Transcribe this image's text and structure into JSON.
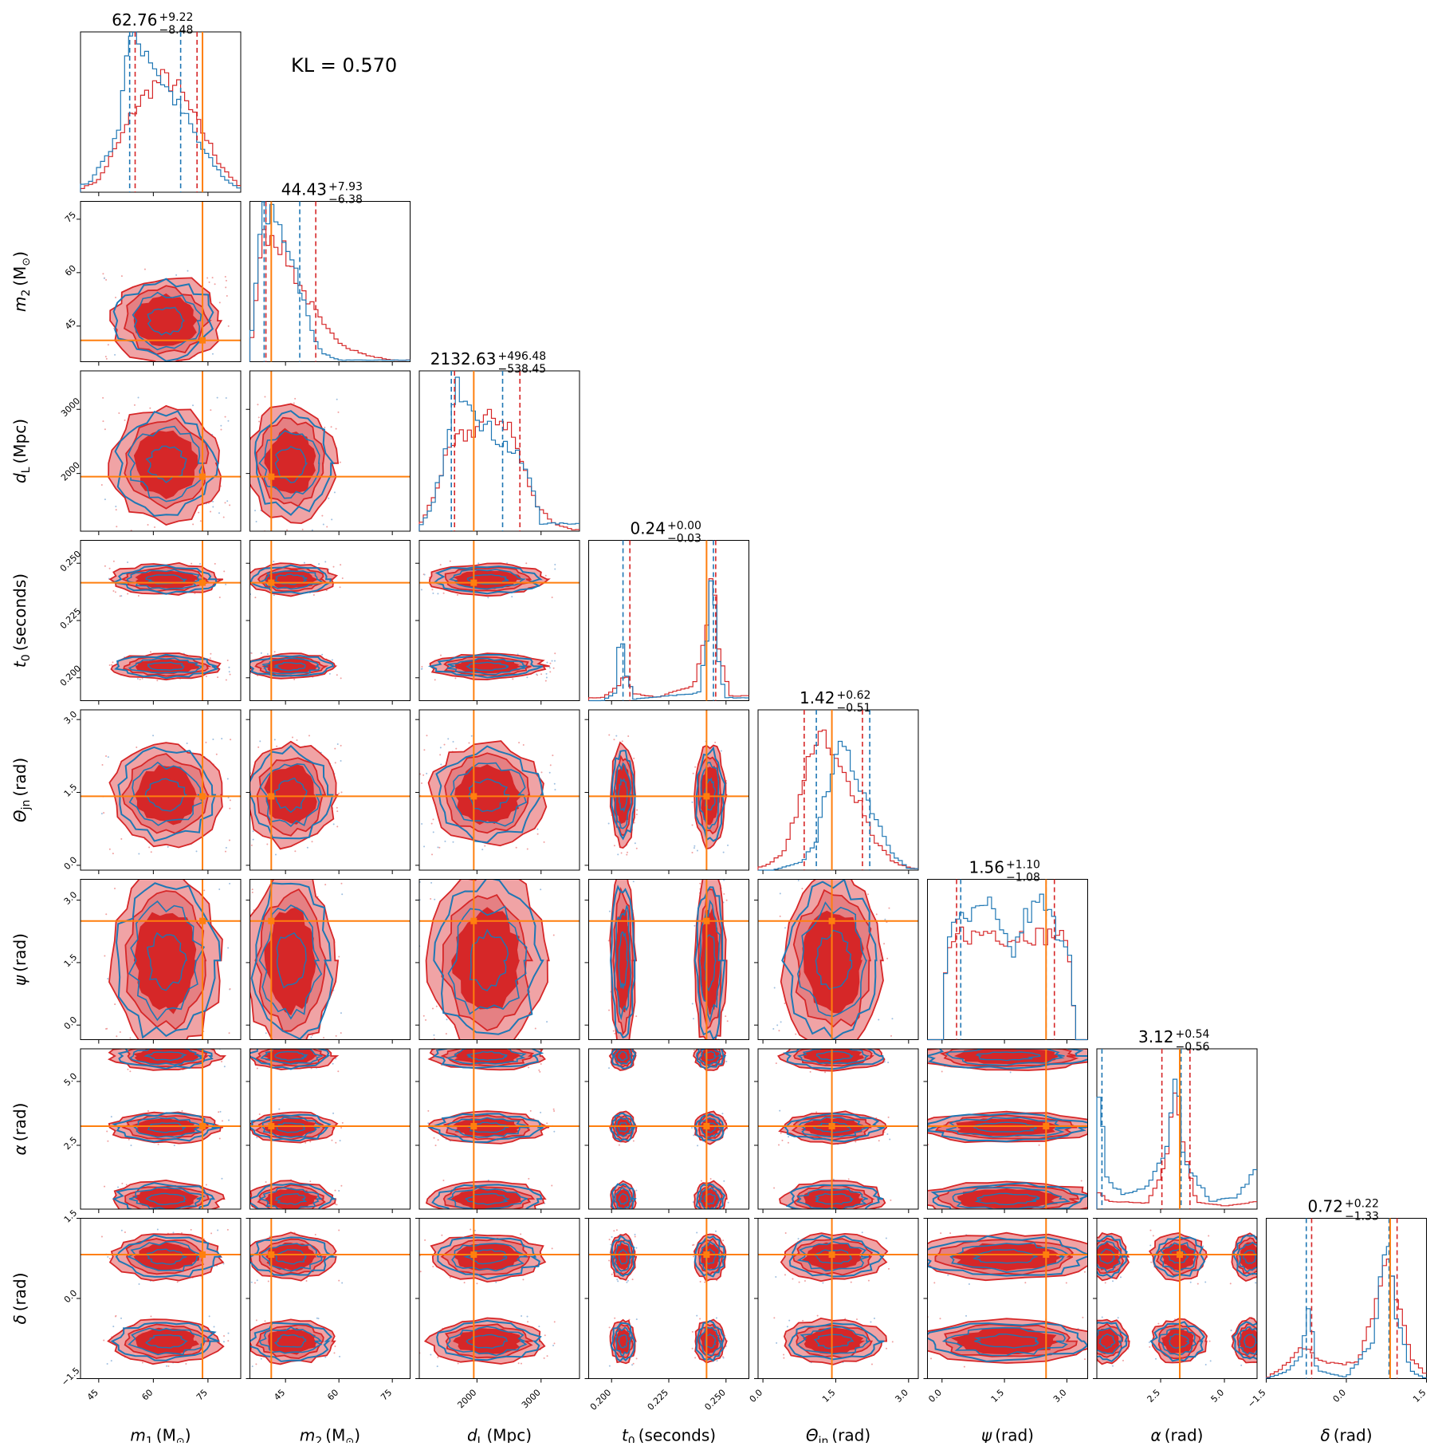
{
  "chart_data": {
    "type": "corner",
    "kl_label": "KL = 0.570",
    "colors": {
      "posterior_a": "#1f77b4",
      "posterior_b": "#d62728",
      "truth": "#ff7f0e"
    },
    "parameters": [
      {
        "key": "m1",
        "label_sym": "m",
        "label_sub": "1",
        "label_unit": "(M",
        "label_unit_sub": "⊙",
        "label_close": ")",
        "range": [
          40,
          84
        ],
        "ticks": [
          45,
          60,
          75
        ],
        "truth": 73.5,
        "title": {
          "median": "62.76",
          "plus": "+9.22",
          "minus": "−8.48"
        },
        "quantiles_a": [
          53.5,
          67.5
        ],
        "quantiles_b": [
          55,
          72
        ],
        "hist_a": [
          [
            42,
            0.05
          ],
          [
            50,
            0.35
          ],
          [
            53,
            1.0
          ],
          [
            58,
            0.95
          ],
          [
            62,
            0.75
          ],
          [
            66,
            0.6
          ],
          [
            70,
            0.45
          ],
          [
            73,
            0.3
          ],
          [
            76,
            0.2
          ],
          [
            80,
            0.08
          ],
          [
            84,
            0.02
          ]
        ],
        "hist_b": [
          [
            40,
            0.02
          ],
          [
            45,
            0.08
          ],
          [
            50,
            0.3
          ],
          [
            55,
            0.55
          ],
          [
            60,
            0.7
          ],
          [
            63,
            0.75
          ],
          [
            67,
            0.68
          ],
          [
            71,
            0.5
          ],
          [
            74,
            0.38
          ],
          [
            78,
            0.2
          ],
          [
            82,
            0.08
          ],
          [
            84,
            0.03
          ]
        ]
      },
      {
        "key": "m2",
        "label_sym": "m",
        "label_sub": "2",
        "label_unit": "(M",
        "label_unit_sub": "⊙",
        "label_close": ")",
        "range": [
          35,
          80
        ],
        "ticks": [
          45,
          60,
          75
        ],
        "truth": 41,
        "title": {
          "median": "44.43",
          "plus": "+7.93",
          "minus": "−6.38"
        },
        "quantiles_a": [
          39,
          49
        ],
        "quantiles_b": [
          39.5,
          53.5
        ],
        "hist_a": [
          [
            36,
            0.2
          ],
          [
            38,
            1.0
          ],
          [
            41,
            0.95
          ],
          [
            44,
            0.85
          ],
          [
            47,
            0.7
          ],
          [
            50,
            0.4
          ],
          [
            53,
            0.15
          ],
          [
            56,
            0.05
          ],
          [
            60,
            0.01
          ]
        ],
        "hist_b": [
          [
            36,
            0.15
          ],
          [
            38,
            0.8
          ],
          [
            41,
            0.85
          ],
          [
            44,
            0.75
          ],
          [
            48,
            0.55
          ],
          [
            52,
            0.38
          ],
          [
            56,
            0.22
          ],
          [
            62,
            0.1
          ],
          [
            68,
            0.04
          ],
          [
            75,
            0.01
          ]
        ]
      },
      {
        "key": "dl",
        "label_sym": "d",
        "label_sub": "L",
        "label_unit": "(Mpc)",
        "label_unit_sub": "",
        "label_close": "",
        "range": [
          1100,
          3600
        ],
        "ticks": [
          2000,
          3000
        ],
        "truth": 1950,
        "title": {
          "median": "2132.63",
          "plus": "+496.48",
          "minus": "−538.45"
        },
        "quantiles_a": [
          1600,
          2400
        ],
        "quantiles_b": [
          1650,
          2670
        ],
        "hist_a": [
          [
            1100,
            0.02
          ],
          [
            1300,
            0.15
          ],
          [
            1500,
            0.5
          ],
          [
            1700,
            0.95
          ],
          [
            1900,
            0.9
          ],
          [
            2100,
            0.7
          ],
          [
            2300,
            0.62
          ],
          [
            2500,
            0.55
          ],
          [
            2700,
            0.45
          ],
          [
            2900,
            0.25
          ],
          [
            3000,
            0.05
          ]
        ],
        "hist_b": [
          [
            1100,
            0.03
          ],
          [
            1300,
            0.2
          ],
          [
            1500,
            0.45
          ],
          [
            1700,
            0.6
          ],
          [
            1900,
            0.65
          ],
          [
            2100,
            0.72
          ],
          [
            2300,
            0.75
          ],
          [
            2500,
            0.7
          ],
          [
            2700,
            0.45
          ],
          [
            2900,
            0.2
          ],
          [
            3200,
            0.05
          ],
          [
            3500,
            0.01
          ]
        ]
      },
      {
        "key": "t0",
        "label_sym": "t",
        "label_sub": "0",
        "label_unit": "(seconds)",
        "label_unit_sub": "",
        "label_close": "",
        "range": [
          0.19,
          0.26
        ],
        "ticks": [
          0.2,
          0.225,
          0.25
        ],
        "tick_labels": [
          "0.200",
          "0.225",
          "0.250"
        ],
        "truth": 0.2415,
        "title": {
          "median": "0.24",
          "plus": "+0.00",
          "minus": "−0.03"
        },
        "quantiles_a": [
          0.205,
          0.2445
        ],
        "quantiles_b": [
          0.208,
          0.2455
        ],
        "hist_a": [
          [
            0.196,
            0.0
          ],
          [
            0.202,
            0.05
          ],
          [
            0.204,
            0.55
          ],
          [
            0.206,
            0.2
          ],
          [
            0.21,
            0.01
          ],
          [
            0.238,
            0.05
          ],
          [
            0.242,
            0.4
          ],
          [
            0.244,
            1.0
          ],
          [
            0.246,
            0.3
          ],
          [
            0.25,
            0.02
          ]
        ],
        "hist_b": [
          [
            0.196,
            0.02
          ],
          [
            0.202,
            0.08
          ],
          [
            0.206,
            0.18
          ],
          [
            0.21,
            0.05
          ],
          [
            0.22,
            0.02
          ],
          [
            0.236,
            0.1
          ],
          [
            0.242,
            0.5
          ],
          [
            0.244,
            0.9
          ],
          [
            0.247,
            0.3
          ],
          [
            0.252,
            0.03
          ]
        ]
      },
      {
        "key": "theta",
        "label_sym": "Θ",
        "label_sub": "jn",
        "label_unit": "(rad)",
        "label_unit_sub": "",
        "label_close": "",
        "range": [
          -0.1,
          3.2
        ],
        "ticks": [
          0.0,
          1.5,
          3.0
        ],
        "tick_labels": [
          "0.0",
          "1.5",
          "3.0"
        ],
        "truth": 1.42,
        "title": {
          "median": "1.42",
          "plus": "+0.62",
          "minus": "−0.51"
        },
        "quantiles_a": [
          1.1,
          2.2
        ],
        "quantiles_b": [
          0.85,
          2.05
        ],
        "hist_a": [
          [
            0.2,
            0.0
          ],
          [
            0.8,
            0.05
          ],
          [
            1.1,
            0.2
          ],
          [
            1.3,
            0.5
          ],
          [
            1.5,
            0.8
          ],
          [
            1.7,
            0.75
          ],
          [
            1.9,
            0.65
          ],
          [
            2.1,
            0.5
          ],
          [
            2.4,
            0.3
          ],
          [
            2.7,
            0.1
          ],
          [
            3.0,
            0.01
          ]
        ],
        "hist_b": [
          [
            0.0,
            0.02
          ],
          [
            0.4,
            0.1
          ],
          [
            0.8,
            0.5
          ],
          [
            1.0,
            0.82
          ],
          [
            1.2,
            0.88
          ],
          [
            1.5,
            0.7
          ],
          [
            1.8,
            0.55
          ],
          [
            2.0,
            0.45
          ],
          [
            2.3,
            0.2
          ],
          [
            2.7,
            0.05
          ],
          [
            3.1,
            0.01
          ]
        ]
      },
      {
        "key": "psi",
        "label_sym": "ψ",
        "label_sub": "",
        "label_unit": "(rad)",
        "label_unit_sub": "",
        "label_close": "",
        "range": [
          -0.35,
          3.5
        ],
        "ticks": [
          0.0,
          1.5,
          3.0
        ],
        "tick_labels": [
          "0.0",
          "1.5",
          "3.0"
        ],
        "truth": 2.5,
        "title": {
          "median": "1.56",
          "plus": "+1.10",
          "minus": "−1.08"
        },
        "quantiles_a": [
          0.45,
          2.5
        ],
        "quantiles_b": [
          0.35,
          2.7
        ],
        "hist_a": [
          [
            0.0,
            0.0
          ],
          [
            0.1,
            0.55
          ],
          [
            0.4,
            0.85
          ],
          [
            0.8,
            0.8
          ],
          [
            1.1,
            0.9
          ],
          [
            1.4,
            0.7
          ],
          [
            1.7,
            0.55
          ],
          [
            2.0,
            0.8
          ],
          [
            2.4,
            0.9
          ],
          [
            2.7,
            0.75
          ],
          [
            3.1,
            0.6
          ],
          [
            3.2,
            0.0
          ]
        ],
        "hist_b": [
          [
            0.0,
            0.0
          ],
          [
            0.1,
            0.5
          ],
          [
            0.4,
            0.7
          ],
          [
            0.8,
            0.68
          ],
          [
            1.2,
            0.72
          ],
          [
            1.6,
            0.66
          ],
          [
            2.0,
            0.7
          ],
          [
            2.4,
            0.68
          ],
          [
            2.8,
            0.7
          ],
          [
            3.1,
            0.55
          ],
          [
            3.2,
            0.0
          ]
        ]
      },
      {
        "key": "alpha",
        "label_sym": "α",
        "label_sub": "",
        "label_unit": "(rad)",
        "label_unit_sub": "",
        "label_close": "",
        "range": [
          0.0,
          6.28
        ],
        "ticks": [
          2.5,
          5.0
        ],
        "tick_labels": [
          "2.5",
          "5.0"
        ],
        "truth": 3.25,
        "title": {
          "median": "3.12",
          "plus": "+0.54",
          "minus": "−0.56"
        },
        "quantiles_a": [
          0.2,
          3.3
        ],
        "quantiles_b": [
          2.55,
          3.65
        ],
        "hist_a": [
          [
            0.1,
            0.8
          ],
          [
            0.4,
            0.2
          ],
          [
            1.0,
            0.1
          ],
          [
            2.0,
            0.15
          ],
          [
            2.8,
            0.4
          ],
          [
            3.1,
            1.0
          ],
          [
            3.4,
            0.3
          ],
          [
            4.5,
            0.05
          ],
          [
            5.5,
            0.08
          ],
          [
            6.2,
            0.25
          ]
        ],
        "hist_b": [
          [
            0.1,
            0.1
          ],
          [
            0.5,
            0.05
          ],
          [
            2.0,
            0.04
          ],
          [
            2.7,
            0.3
          ],
          [
            3.1,
            0.8
          ],
          [
            3.4,
            0.4
          ],
          [
            3.9,
            0.05
          ],
          [
            5.0,
            0.02
          ],
          [
            6.2,
            0.05
          ]
        ]
      },
      {
        "key": "delta",
        "label_sym": "δ",
        "label_sub": "",
        "label_unit": "(rad)",
        "label_unit_sub": "",
        "label_close": "",
        "range": [
          -1.5,
          1.5
        ],
        "ticks": [
          -1.5,
          0.0,
          1.5
        ],
        "tick_labels": [
          "−1.5",
          "0.0",
          "1.5"
        ],
        "truth": 0.82,
        "title": {
          "median": "0.72",
          "plus": "+0.22",
          "minus": "−1.33"
        },
        "quantiles_a": [
          -0.75,
          0.8
        ],
        "quantiles_b": [
          -0.65,
          0.95
        ],
        "hist_a": [
          [
            -1.5,
            0.0
          ],
          [
            -1.1,
            0.05
          ],
          [
            -0.85,
            0.15
          ],
          [
            -0.7,
            0.45
          ],
          [
            -0.55,
            0.05
          ],
          [
            0.0,
            0.01
          ],
          [
            0.5,
            0.25
          ],
          [
            0.75,
            0.95
          ],
          [
            0.95,
            0.4
          ],
          [
            1.2,
            0.05
          ],
          [
            1.5,
            0.0
          ]
        ],
        "hist_b": [
          [
            -1.5,
            0.0
          ],
          [
            -1.1,
            0.1
          ],
          [
            -0.8,
            0.22
          ],
          [
            -0.55,
            0.12
          ],
          [
            -0.2,
            0.1
          ],
          [
            0.2,
            0.1
          ],
          [
            0.5,
            0.4
          ],
          [
            0.75,
            0.85
          ],
          [
            0.95,
            0.55
          ],
          [
            1.2,
            0.15
          ],
          [
            1.5,
            0.02
          ]
        ]
      }
    ]
  }
}
